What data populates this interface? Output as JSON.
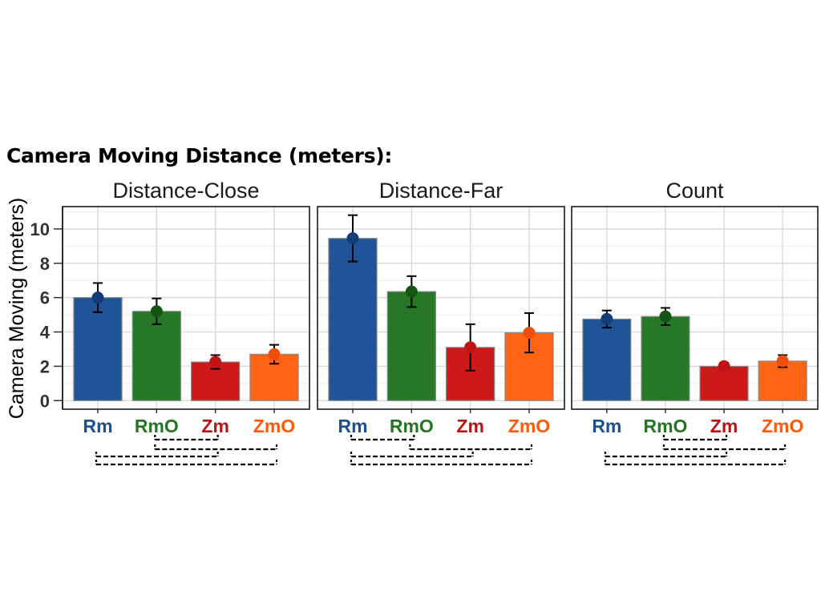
{
  "figure_title": "Camera Moving Distance (meters):",
  "colors": {
    "Rm": "#1f5596",
    "RmO": "#267826",
    "Zm": "#cc1a1a",
    "ZmO": "#ff6414",
    "Rm_label": "#1f4e8c",
    "RmO_label": "#237523",
    "Zm_label": "#b81414",
    "ZmO_label": "#ff5a0a"
  },
  "chart_data": {
    "type": "bar",
    "title": "Camera Moving Distance (meters):",
    "ylabel": "Camera Moving (meters)",
    "xlabel": "",
    "ylim": [
      -0.5,
      11.3
    ],
    "yticks": [
      "0",
      "2",
      "4",
      "6",
      "8",
      "10"
    ],
    "grid": true,
    "categories": [
      "Rm",
      "RmO",
      "Zm",
      "ZmO"
    ],
    "panels": [
      {
        "title": "Distance-Close",
        "values": [
          6.0,
          5.2,
          2.25,
          2.7
        ],
        "errors": [
          0.85,
          0.75,
          0.4,
          0.55
        ],
        "comparisons": [
          [
            "RmO",
            "Zm"
          ],
          [
            "RmO",
            "ZmO"
          ],
          [
            "Rm",
            "Zm"
          ],
          [
            "Rm",
            "ZmO"
          ]
        ]
      },
      {
        "title": "Distance-Far",
        "values": [
          9.45,
          6.35,
          3.1,
          3.95
        ],
        "errors": [
          1.35,
          0.9,
          1.35,
          1.15
        ],
        "comparisons": [
          [
            "Rm",
            "RmO"
          ],
          [
            "RmO",
            "ZmO"
          ],
          [
            "Rm",
            "Zm"
          ],
          [
            "Rm",
            "ZmO"
          ]
        ]
      },
      {
        "title": "Count",
        "values": [
          4.75,
          4.9,
          2.0,
          2.3
        ],
        "errors": [
          0.5,
          0.5,
          0.2,
          0.35
        ],
        "comparisons": [
          [
            "RmO",
            "Zm"
          ],
          [
            "RmO",
            "ZmO"
          ],
          [
            "Rm",
            "Zm"
          ],
          [
            "Rm",
            "ZmO"
          ]
        ]
      }
    ]
  }
}
